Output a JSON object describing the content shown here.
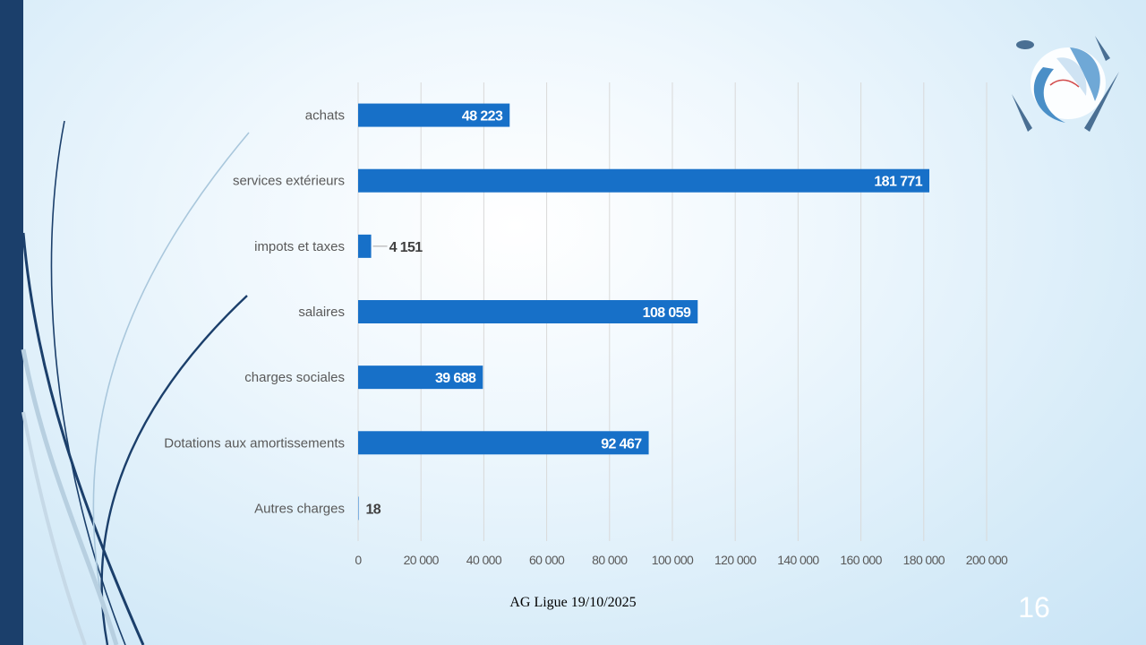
{
  "footer": {
    "text": "AG Ligue 19/10/2025"
  },
  "slide_number": "16",
  "colors": {
    "bar": "#1770c8",
    "left_bar": "#1b3f6b",
    "grid": "#d9d9d9"
  },
  "chart_data": {
    "type": "bar",
    "orientation": "horizontal",
    "categories": [
      "achats",
      "services extérieurs",
      "impots et taxes",
      "salaires",
      "charges sociales",
      "Dotations aux amortissements",
      "Autres charges"
    ],
    "values": [
      48223,
      181771,
      4151,
      108059,
      39688,
      92467,
      18
    ],
    "value_labels": [
      "48 223",
      "181 771",
      "4 151",
      "108 059",
      "39 688",
      "92 467",
      "18"
    ],
    "xlim": [
      0,
      200000
    ],
    "x_ticks": [
      0,
      20000,
      40000,
      60000,
      80000,
      100000,
      120000,
      140000,
      160000,
      180000,
      200000
    ],
    "x_tick_labels": [
      "0",
      "20 000",
      "40 000",
      "60 000",
      "80 000",
      "100 000",
      "120 000",
      "140 000",
      "160 000",
      "180 000",
      "200 000"
    ],
    "grid": "vertical",
    "legend": "none",
    "title": "",
    "xlabel": "",
    "ylabel": ""
  }
}
